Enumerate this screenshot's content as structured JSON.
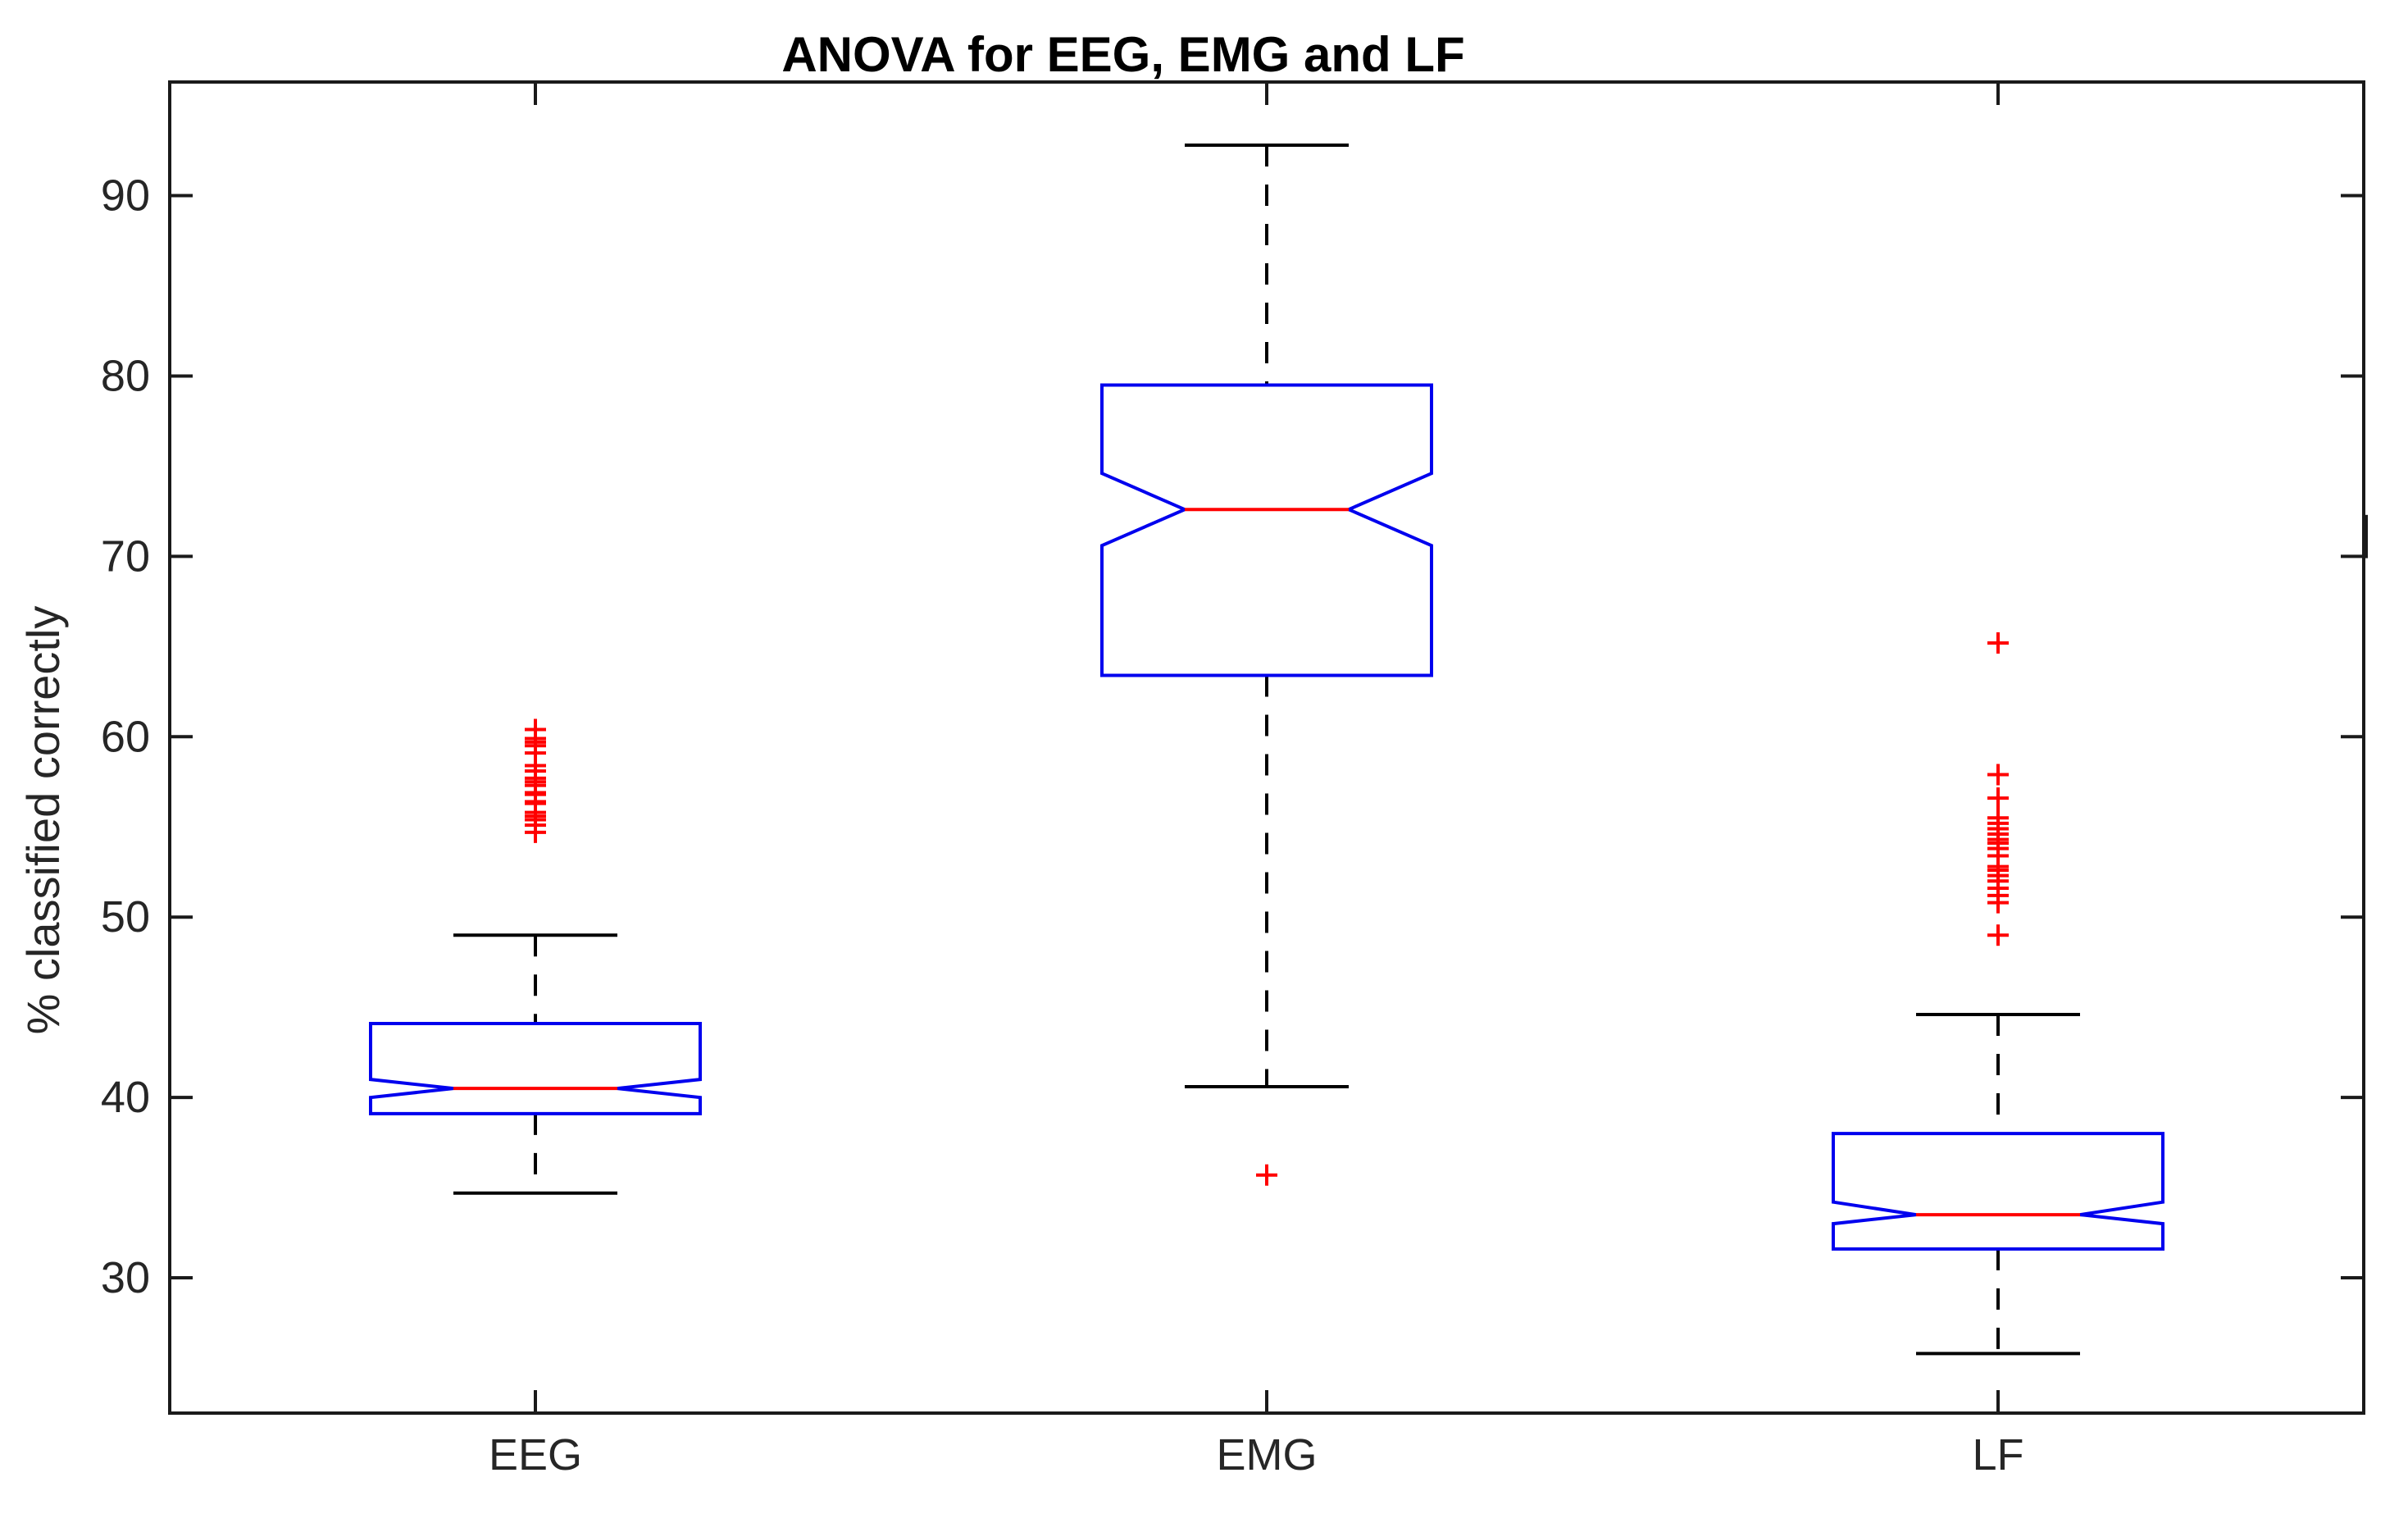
{
  "figure": {
    "title": "ANOVA for EEG, EMG and LF",
    "ylabel": "% classified correctly"
  },
  "chart_data": {
    "type": "boxplot",
    "title": "ANOVA for EEG, EMG and LF",
    "xlabel": "",
    "ylabel": "% classified correctly",
    "categories": [
      "EEG",
      "EMG",
      "LF"
    ],
    "ylim": [
      22.5,
      96.3
    ],
    "yticks": [
      30,
      40,
      50,
      60,
      70,
      80,
      90
    ],
    "grid": false,
    "notched": true,
    "legend": "none",
    "series": [
      {
        "name": "EEG",
        "whisker_low": 34.7,
        "q1": 39.1,
        "median": 40.5,
        "q3": 44.1,
        "whisker_high": 49.0,
        "notch_low": 40.0,
        "notch_high": 41.0,
        "outliers": [
          60.4,
          59.9,
          59.7,
          59.5,
          59.1,
          58.4,
          58.1,
          57.7,
          57.5,
          57.3,
          56.9,
          56.8,
          56.4,
          56.3,
          55.8,
          55.6,
          55.4,
          55.1,
          54.7
        ]
      },
      {
        "name": "EMG",
        "whisker_low": 40.6,
        "q1": 63.4,
        "median": 72.6,
        "q3": 79.5,
        "whisker_high": 92.8,
        "notch_low": 70.6,
        "notch_high": 74.6,
        "outliers": [
          35.7
        ]
      },
      {
        "name": "LF",
        "whisker_low": 25.8,
        "q1": 31.6,
        "median": 33.5,
        "q3": 38.0,
        "whisker_high": 44.6,
        "notch_low": 33.0,
        "notch_high": 34.2,
        "outliers": [
          65.2,
          57.9,
          56.6,
          55.5,
          55.2,
          54.9,
          54.6,
          54.3,
          54.1,
          53.8,
          53.4,
          52.8,
          52.6,
          52.3,
          52.0,
          51.6,
          51.2,
          50.8,
          49.0
        ]
      }
    ],
    "right_edge_mark_values": [
      72.3,
      69.9
    ],
    "colors": {
      "box": "#0000ee",
      "median": "#ff0000",
      "outlier": "#ff0000",
      "whisker": "#000000",
      "axis": "#1a1a1a",
      "tick_label": "#262626",
      "background": "#ffffff"
    }
  }
}
